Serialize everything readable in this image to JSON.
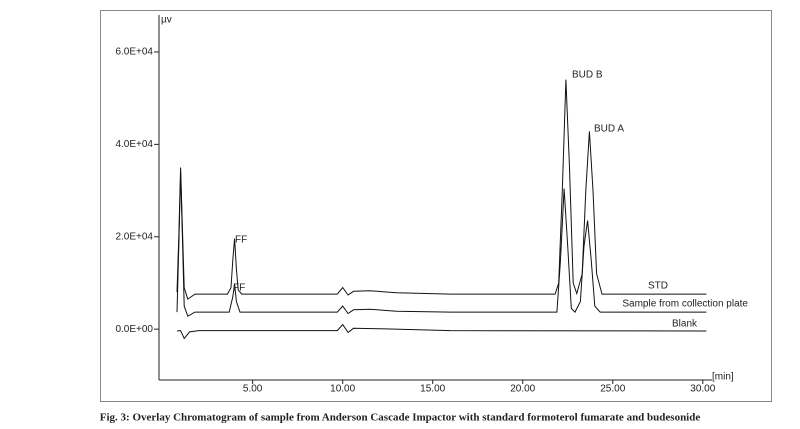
{
  "chart_data": {
    "type": "line",
    "y_label": "µv",
    "x_label": "[min]",
    "caption": "Fig. 3: Overlay Chromatogram of sample from Anderson Cascade Impactor with standard formoterol fumarate and budesonide",
    "xlim": [
      -0.2,
      30.4
    ],
    "ylim": [
      -11000,
      68000
    ],
    "xticks": [
      {
        "value": 5,
        "label": "5.00"
      },
      {
        "value": 10,
        "label": "10.00"
      },
      {
        "value": 15,
        "label": "15.00"
      },
      {
        "value": 20,
        "label": "20.00"
      },
      {
        "value": 25,
        "label": "25.00"
      },
      {
        "value": 30,
        "label": "30.00"
      }
    ],
    "yticks": [
      {
        "value": 0,
        "label": "0.0E+00"
      },
      {
        "value": 20000,
        "label": "2.0E+04"
      },
      {
        "value": 40000,
        "label": "4.0E+04"
      },
      {
        "value": 60000,
        "label": "6.0E+04"
      }
    ],
    "series": [
      {
        "name": "STD",
        "color": "#111111",
        "x": [
          0.8,
          0.9,
          1.0,
          1.1,
          1.2,
          1.4,
          1.8,
          3.6,
          3.8,
          3.9,
          4.0,
          4.1,
          4.2,
          4.4,
          9.7,
          10.0,
          10.3,
          10.6,
          11.5,
          13,
          16,
          21.8,
          22.0,
          22.2,
          22.4,
          22.6,
          22.8,
          23.0,
          23.3,
          23.5,
          23.7,
          23.9,
          24.1,
          24.4,
          30.2
        ],
        "values": [
          8000,
          20000,
          35000,
          22000,
          9000,
          6500,
          7600,
          7600,
          9000,
          15000,
          19600,
          13000,
          8500,
          7600,
          7600,
          9000,
          7400,
          8200,
          8300,
          7900,
          7600,
          7600,
          10000,
          30000,
          54000,
          35000,
          10000,
          7700,
          12000,
          30000,
          42800,
          30000,
          12000,
          7600,
          7600
        ]
      },
      {
        "name": "Sample from collection plate",
        "color": "#111111",
        "x": [
          0.8,
          0.9,
          1.0,
          1.1,
          1.2,
          1.4,
          1.8,
          3.7,
          3.9,
          4.0,
          4.1,
          4.3,
          9.7,
          10.0,
          10.3,
          10.6,
          11.5,
          13,
          16,
          21.9,
          22.1,
          22.3,
          22.5,
          22.7,
          22.9,
          23.2,
          23.4,
          23.6,
          23.8,
          24.0,
          24.3,
          30.2
        ],
        "values": [
          3700,
          18000,
          34000,
          20000,
          5000,
          2800,
          3700,
          3700,
          7000,
          9800,
          6000,
          3700,
          3700,
          5000,
          3400,
          4200,
          4300,
          3900,
          3700,
          3700,
          15000,
          30400,
          18000,
          4500,
          3700,
          6000,
          18000,
          23500,
          15000,
          5000,
          3700,
          3700
        ]
      },
      {
        "name": "Blank",
        "color": "#111111",
        "x": [
          0.8,
          1.0,
          1.2,
          1.5,
          2.0,
          9.7,
          10.0,
          10.3,
          10.6,
          12,
          16,
          30.2
        ],
        "values": [
          -400,
          -300,
          -2000,
          -600,
          -300,
          -300,
          1000,
          -700,
          200,
          100,
          -300,
          -400
        ]
      }
    ],
    "annotations": [
      "BUD B",
      "BUD A",
      "FF",
      "FF"
    ]
  }
}
